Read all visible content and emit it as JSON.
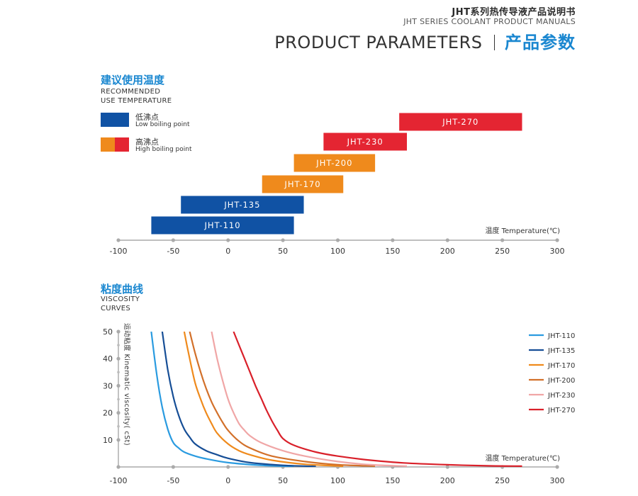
{
  "header": {
    "title_cn": "JHT系列热传导液产品说明书",
    "title_en": "JHT SERIES COOLANT PRODUCT MANUALS",
    "section_en": "PRODUCT PARAMETERS",
    "section_cn": "产品参数"
  },
  "temperature_section": {
    "title_cn": "建议使用温度",
    "subtitle_line1": "RECOMMENDED",
    "subtitle_line2": "USE TEMPERATURE"
  },
  "viscosity_section": {
    "title_cn": "粘度曲线",
    "subtitle_line1": "VISCOSITY",
    "subtitle_line2": "CURVES"
  },
  "legend": {
    "low_cn": "低沸点",
    "low_en": "Low boiling point",
    "high_cn": "高沸点",
    "high_en": "High boiling point"
  },
  "colors": {
    "blue": "#1052a4",
    "orange": "#ef8a1c",
    "red": "#e42532",
    "accent": "#1a87d0",
    "axis": "#999999"
  },
  "chart_data": [
    {
      "type": "bar",
      "orientation": "horizontal-range",
      "xlabel": "温度 Temperature(℃)",
      "xlim": [
        -100,
        300
      ],
      "xticks": [
        -100,
        -50,
        0,
        50,
        100,
        150,
        200,
        250,
        300
      ],
      "bars": [
        {
          "label": "JHT-110",
          "min": -70,
          "max": 60,
          "group": "low"
        },
        {
          "label": "JHT-135",
          "min": -43,
          "max": 69,
          "group": "low"
        },
        {
          "label": "JHT-170",
          "min": 31,
          "max": 105,
          "group": "high"
        },
        {
          "label": "JHT-200",
          "min": 60,
          "max": 134,
          "group": "high"
        },
        {
          "label": "JHT-230",
          "min": 87,
          "max": 163,
          "group": "high"
        },
        {
          "label": "JHT-270",
          "min": 156,
          "max": 268,
          "group": "high"
        }
      ]
    },
    {
      "type": "line",
      "xlabel": "温度 Temperature(℃)",
      "ylabel": "运动粘度 Kinematic viscosity( cSt)",
      "xlim": [
        -100,
        300
      ],
      "ylim": [
        0,
        50
      ],
      "xticks": [
        -100,
        -50,
        0,
        50,
        100,
        150,
        200,
        250,
        300
      ],
      "yticks": [
        10,
        20,
        30,
        40,
        50
      ],
      "legend_position": "right",
      "series": [
        {
          "name": "JHT-110",
          "color": "#2a9be0",
          "x": [
            -70,
            -65,
            -60,
            -55,
            -50,
            -45,
            -40,
            -30,
            -20,
            0,
            30,
            60
          ],
          "y": [
            50,
            34,
            22,
            14,
            9,
            7,
            5.5,
            4,
            3,
            1.6,
            0.6,
            0.2
          ]
        },
        {
          "name": "JHT-135",
          "color": "#164e96",
          "x": [
            -60,
            -55,
            -50,
            -45,
            -40,
            -35,
            -30,
            -20,
            -10,
            0,
            20,
            50,
            80
          ],
          "y": [
            50,
            36,
            26,
            19,
            14,
            11,
            8.5,
            6,
            4.5,
            3.2,
            1.6,
            0.6,
            0.2
          ]
        },
        {
          "name": "JHT-170",
          "color": "#ef8a1c",
          "x": [
            -40,
            -35,
            -30,
            -25,
            -20,
            -15,
            -10,
            0,
            10,
            20,
            40,
            70,
            105
          ],
          "y": [
            50,
            40,
            31,
            25,
            20,
            16,
            12.5,
            8.5,
            6,
            4.5,
            2.5,
            1,
            0.3
          ]
        },
        {
          "name": "JHT-200",
          "color": "#d2702a",
          "x": [
            -35,
            -30,
            -25,
            -20,
            -15,
            -10,
            -5,
            0,
            10,
            20,
            40,
            70,
            100,
            134
          ],
          "y": [
            50,
            42,
            35,
            29,
            24,
            20,
            16.5,
            13.5,
            9.5,
            7,
            4,
            2,
            0.8,
            0.3
          ]
        },
        {
          "name": "JHT-230",
          "color": "#f0a6a6",
          "x": [
            -15,
            -10,
            -5,
            0,
            5,
            10,
            15,
            20,
            30,
            50,
            70,
            100,
            130,
            163
          ],
          "y": [
            50,
            40,
            32,
            25,
            20,
            16,
            13.5,
            11.5,
            9,
            6,
            4,
            2,
            0.8,
            0.3
          ]
        },
        {
          "name": "JHT-270",
          "color": "#d9202a",
          "x": [
            5,
            10,
            15,
            20,
            25,
            30,
            35,
            40,
            45,
            50,
            60,
            80,
            100,
            130,
            160,
            200,
            240,
            268
          ],
          "y": [
            50,
            45,
            40,
            35,
            30,
            25.5,
            21,
            17,
            13.5,
            10.5,
            8,
            5.5,
            4,
            2.5,
            1.5,
            0.8,
            0.4,
            0.3
          ]
        }
      ]
    }
  ]
}
